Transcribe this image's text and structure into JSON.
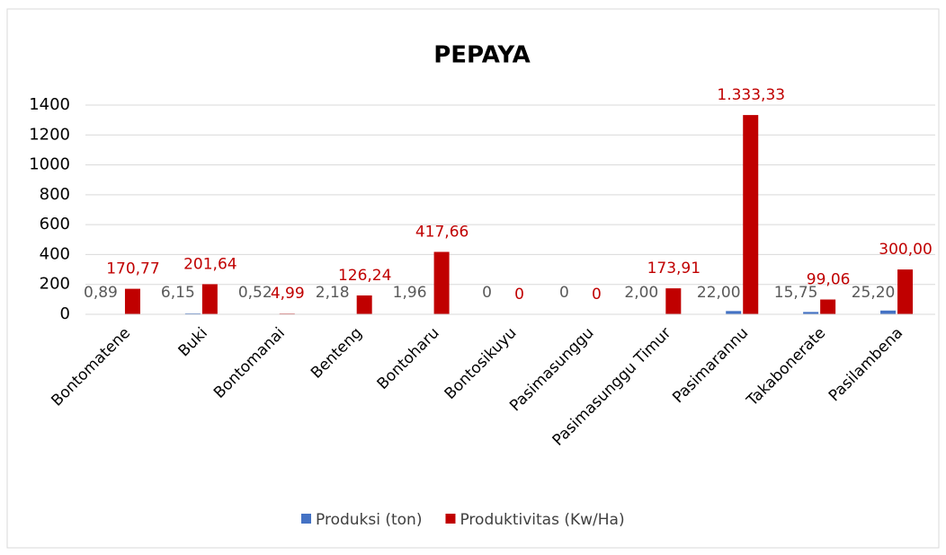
{
  "chart_data": {
    "type": "bar",
    "title": "PEPAYA",
    "categories": [
      "Bontomatene",
      "Buki",
      "Bontomanai",
      "Benteng",
      "Bontoharu",
      "Bontosikuyu",
      "Pasimasunggu",
      "Pasimasunggu Timur",
      "Pasimarannu",
      "Takabonerate",
      "Pasilambena"
    ],
    "series": [
      {
        "name": "Produksi (ton)",
        "color": "#4472c4",
        "label_color": "#595959",
        "values": [
          0.89,
          6.15,
          0.52,
          2.18,
          1.96,
          0,
          0,
          2.0,
          22.0,
          15.75,
          25.2
        ],
        "value_labels": [
          "0,89",
          "6,15",
          "0,52",
          "2,18",
          "1,96",
          "0",
          "0",
          "2,00",
          "22,00",
          "15,75",
          "25,20"
        ]
      },
      {
        "name": "Produktivitas (Kw/Ha)",
        "color": "#c00000",
        "label_color": "#c00000",
        "values": [
          170.77,
          201.64,
          4.99,
          126.24,
          417.66,
          0,
          0,
          173.91,
          1333.33,
          99.06,
          300.0
        ],
        "value_labels": [
          "170,77",
          "201,64",
          "4,99",
          "126,24",
          "417,66",
          "0",
          "0",
          "173,91",
          "1.333,33",
          "99,06",
          "300,00"
        ]
      }
    ],
    "ylim": [
      0,
      1400
    ],
    "yticks": [
      0,
      200,
      400,
      600,
      800,
      1000,
      1200,
      1400
    ],
    "grid": true,
    "legend": "bottom"
  }
}
